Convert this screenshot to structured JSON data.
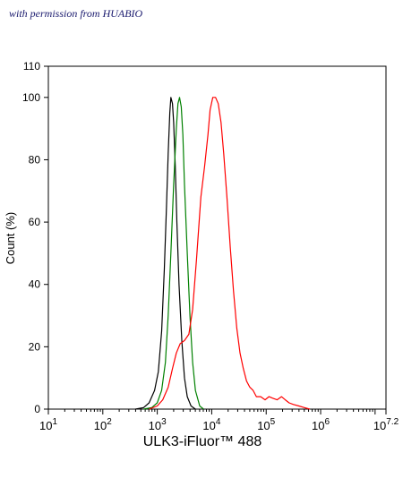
{
  "watermark": "with permission from HUABIO",
  "chart_data": {
    "type": "line",
    "xlabel": "ULK3-iFluor™ 488",
    "ylabel": "Count  (%)",
    "x_scale": "log10",
    "xlim": [
      1,
      7.2
    ],
    "ylim": [
      0,
      110
    ],
    "x_ticks": [
      {
        "base": "10",
        "exp": "1",
        "pos": 1
      },
      {
        "base": "10",
        "exp": "2",
        "pos": 2
      },
      {
        "base": "10",
        "exp": "3",
        "pos": 3
      },
      {
        "base": "10",
        "exp": "4",
        "pos": 4
      },
      {
        "base": "10",
        "exp": "5",
        "pos": 5
      },
      {
        "base": "10",
        "exp": "6",
        "pos": 6
      },
      {
        "base": "10",
        "exp": "7.2",
        "pos": 7.2
      }
    ],
    "y_ticks": [
      0,
      20,
      40,
      60,
      80,
      100,
      110
    ],
    "grid": false,
    "legend": "none",
    "series": [
      {
        "color": "#000000",
        "points": [
          [
            2.6,
            0
          ],
          [
            2.75,
            0.5
          ],
          [
            2.85,
            2
          ],
          [
            2.95,
            6
          ],
          [
            3.02,
            12
          ],
          [
            3.08,
            25
          ],
          [
            3.13,
            45
          ],
          [
            3.17,
            65
          ],
          [
            3.2,
            82
          ],
          [
            3.23,
            95
          ],
          [
            3.25,
            100
          ],
          [
            3.28,
            98
          ],
          [
            3.3,
            92
          ],
          [
            3.33,
            78
          ],
          [
            3.36,
            60
          ],
          [
            3.4,
            40
          ],
          [
            3.45,
            22
          ],
          [
            3.5,
            10
          ],
          [
            3.55,
            4
          ],
          [
            3.62,
            1
          ],
          [
            3.7,
            0
          ]
        ]
      },
      {
        "color": "#008000",
        "points": [
          [
            2.75,
            0
          ],
          [
            2.9,
            0.5
          ],
          [
            3.0,
            2
          ],
          [
            3.08,
            6
          ],
          [
            3.15,
            15
          ],
          [
            3.2,
            30
          ],
          [
            3.25,
            50
          ],
          [
            3.3,
            72
          ],
          [
            3.35,
            90
          ],
          [
            3.38,
            98
          ],
          [
            3.41,
            100
          ],
          [
            3.44,
            97
          ],
          [
            3.47,
            88
          ],
          [
            3.5,
            72
          ],
          [
            3.55,
            50
          ],
          [
            3.6,
            30
          ],
          [
            3.65,
            15
          ],
          [
            3.7,
            6
          ],
          [
            3.78,
            1
          ],
          [
            3.85,
            0
          ]
        ]
      },
      {
        "color": "#ff0000",
        "points": [
          [
            2.85,
            0
          ],
          [
            3.0,
            1
          ],
          [
            3.1,
            3
          ],
          [
            3.2,
            7
          ],
          [
            3.28,
            13
          ],
          [
            3.35,
            18
          ],
          [
            3.42,
            21
          ],
          [
            3.5,
            22
          ],
          [
            3.58,
            24
          ],
          [
            3.65,
            32
          ],
          [
            3.72,
            48
          ],
          [
            3.8,
            68
          ],
          [
            3.87,
            78
          ],
          [
            3.93,
            88
          ],
          [
            3.97,
            96
          ],
          [
            4.02,
            100
          ],
          [
            4.07,
            100
          ],
          [
            4.12,
            98
          ],
          [
            4.17,
            92
          ],
          [
            4.22,
            82
          ],
          [
            4.28,
            68
          ],
          [
            4.34,
            52
          ],
          [
            4.4,
            38
          ],
          [
            4.46,
            26
          ],
          [
            4.52,
            18
          ],
          [
            4.58,
            13
          ],
          [
            4.64,
            9
          ],
          [
            4.7,
            7
          ],
          [
            4.76,
            6
          ],
          [
            4.82,
            4
          ],
          [
            4.9,
            4
          ],
          [
            4.98,
            3
          ],
          [
            5.05,
            4
          ],
          [
            5.12,
            3.5
          ],
          [
            5.2,
            3
          ],
          [
            5.28,
            4
          ],
          [
            5.35,
            3
          ],
          [
            5.42,
            2
          ],
          [
            5.5,
            1.5
          ],
          [
            5.6,
            1
          ],
          [
            5.7,
            0.5
          ],
          [
            5.8,
            0
          ]
        ]
      }
    ]
  }
}
